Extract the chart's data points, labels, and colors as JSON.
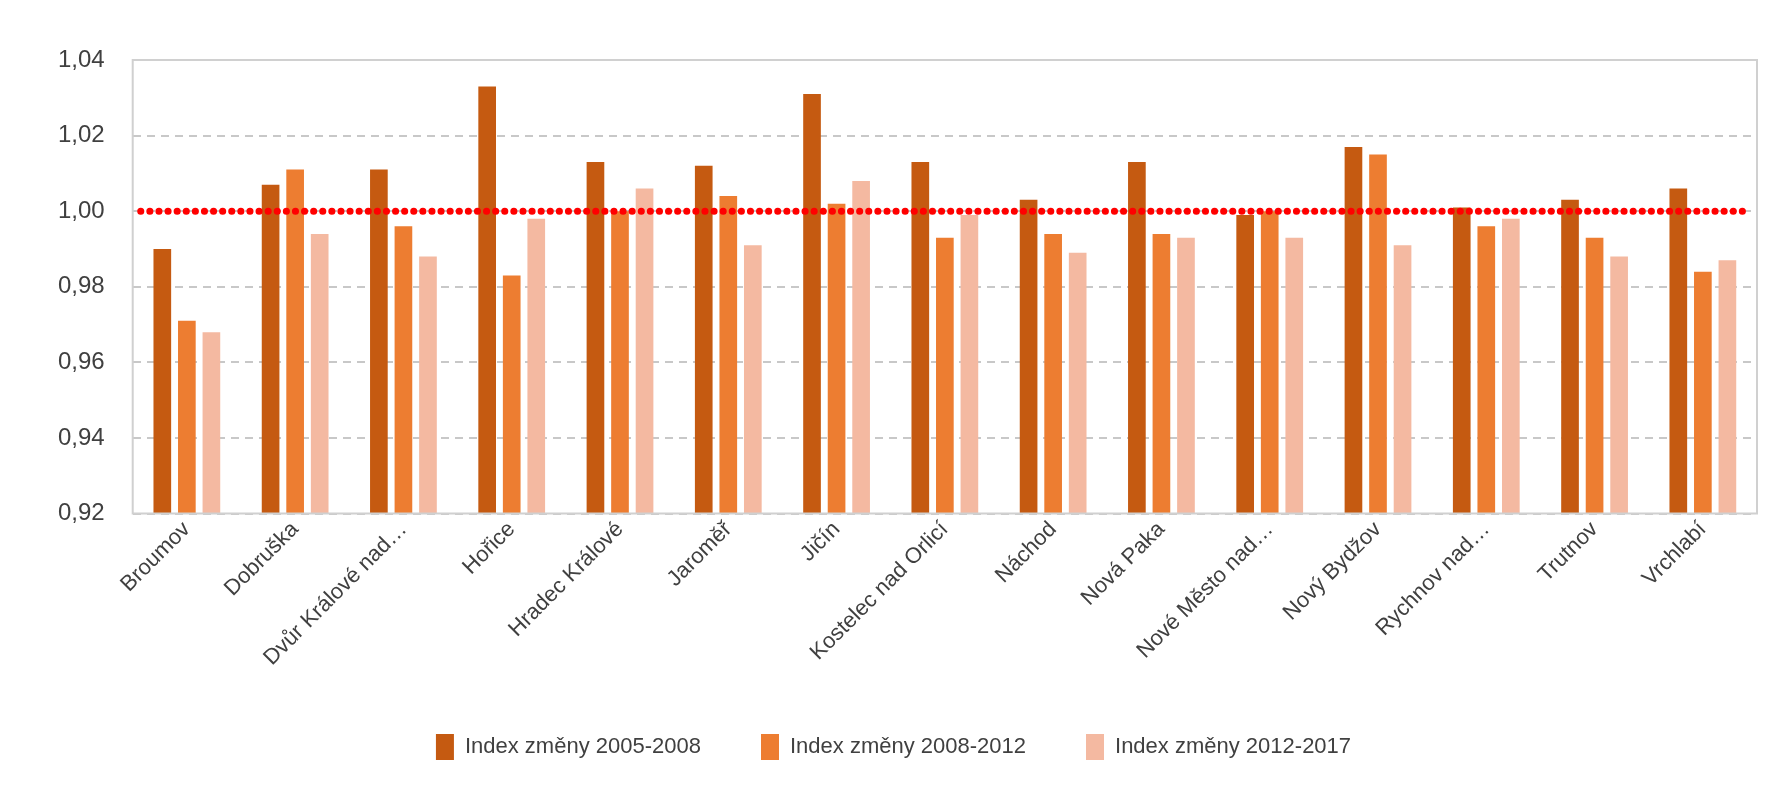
{
  "chart_data": {
    "type": "bar",
    "categories": [
      "Broumov",
      "Dobruška",
      "Dvůr Králové nad…",
      "Hořice",
      "Hradec Králové",
      "Jaroměř",
      "Jičín",
      "Kostelec nad Orlicí",
      "Náchod",
      "Nová Paka",
      "Nové Město nad…",
      "Nový Bydžov",
      "Rychnov nad…",
      "Trutnov",
      "Vrchlabí"
    ],
    "series": [
      {
        "name": "Index změny 2005-2008",
        "color": "#c55a11",
        "values": [
          0.99,
          1.007,
          1.011,
          1.033,
          1.013,
          1.012,
          1.031,
          1.013,
          1.003,
          1.013,
          0.999,
          1.017,
          1.001,
          1.003,
          1.006
        ]
      },
      {
        "name": "Index změny 2008-2012",
        "color": "#ed7d31",
        "values": [
          0.971,
          1.011,
          0.996,
          0.983,
          1.0,
          1.004,
          1.002,
          0.993,
          0.994,
          0.994,
          1.0,
          1.015,
          0.996,
          0.993,
          0.984
        ]
      },
      {
        "name": "Index změny 2012-2017",
        "color": "#f4b9a1",
        "values": [
          0.968,
          0.994,
          0.988,
          0.998,
          1.006,
          0.991,
          1.008,
          0.999,
          0.989,
          0.993,
          0.993,
          0.991,
          0.998,
          0.988,
          0.987
        ]
      }
    ],
    "ylim": [
      0.92,
      1.04
    ],
    "yticks": [
      {
        "value": 0.92,
        "label": "0,92"
      },
      {
        "value": 0.94,
        "label": "0,94"
      },
      {
        "value": 0.96,
        "label": "0,96"
      },
      {
        "value": 0.98,
        "label": "0,98"
      },
      {
        "value": 1.0,
        "label": "1,00"
      },
      {
        "value": 1.02,
        "label": "1,02"
      },
      {
        "value": 1.04,
        "label": "1,04"
      }
    ],
    "ref_lines": [
      {
        "axis": "y",
        "value": 1.0,
        "color": "#ff0000",
        "line_style": "dotted"
      }
    ],
    "grid": "y",
    "legend": "bottom"
  }
}
